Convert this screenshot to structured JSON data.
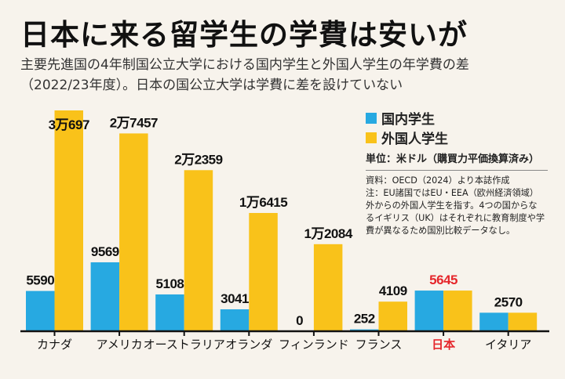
{
  "title": "日本に来る留学生の学費は安いが",
  "subtitle_lines": [
    "主要先進国の4年制国公立大学における国内学生と外国人学生の年学費の差",
    "（2022/23年度）。日本の国公立大学は学費に差を設けていない"
  ],
  "legend": {
    "domestic": "国内学生",
    "foreign": "外国人学生",
    "unit": "単位：米ドル（購買力平価換算済み）"
  },
  "notes": [
    "資料：OECD（2024）より本誌作成",
    "注：EU諸国ではEU・EEA（欧州経済領域）",
    "外からの外国人学生を指す。4つの国からな",
    "るイギリス（UK）はそれぞれに教育制度や学",
    "費が異なるため国別比較データなし。"
  ],
  "colors": {
    "domestic": "#27a9e1",
    "foreign": "#f9c21a",
    "highlight": "#e5262b",
    "background": "#f7f3ec"
  },
  "chart_data": {
    "type": "bar",
    "categories": [
      "カナダ",
      "アメリカ",
      "オーストラリア",
      "オランダ",
      "フィンランド",
      "フランス",
      "日本",
      "イタリア"
    ],
    "highlight_category": "日本",
    "series": [
      {
        "name": "国内学生",
        "values": [
          5590,
          9569,
          5108,
          3041,
          0,
          252,
          5645,
          2570
        ]
      },
      {
        "name": "外国人学生",
        "values": [
          30697,
          27457,
          22359,
          16415,
          12084,
          4109,
          5645,
          2570
        ]
      }
    ],
    "data_labels": {
      "国内学生": [
        "5590",
        "9569",
        "5108",
        "3041",
        "0",
        "252",
        "5645",
        "2570"
      ],
      "外国人学生": [
        "3万697",
        "2万7457",
        "2万2359",
        "1万6415",
        "1万2084",
        "4109",
        "",
        ""
      ]
    },
    "combined_label_categories": [
      "日本",
      "イタリア"
    ],
    "ylabel": "単位：米ドル（購買力平価換算済み）",
    "grid": false,
    "legend_position": "top-right"
  }
}
